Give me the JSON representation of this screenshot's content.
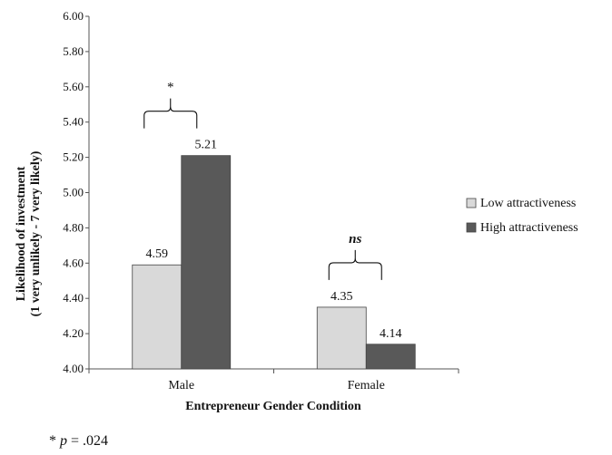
{
  "chart_data": {
    "type": "bar",
    "title": "",
    "xlabel": "Entrepreneur Gender Condition",
    "ylabel": "Likelihood of investment",
    "ylabel_sub": "(1 very unlikely - 7 very likely)",
    "ylim": [
      4.0,
      6.0
    ],
    "yticks": [
      "4.00",
      "4.20",
      "4.40",
      "4.60",
      "4.80",
      "5.00",
      "5.20",
      "5.40",
      "5.60",
      "5.80",
      "6.00"
    ],
    "categories": [
      "Male",
      "Female"
    ],
    "series": [
      {
        "name": "Low attractiveness",
        "values": [
          4.59,
          4.35
        ],
        "labels": [
          "4.59",
          "4.35"
        ],
        "color": "#d9d9d9"
      },
      {
        "name": "High attractiveness",
        "values": [
          5.21,
          4.14
        ],
        "labels": [
          "5.21",
          "4.14"
        ],
        "color": "#595959"
      }
    ],
    "annotations": [
      {
        "category": "Male",
        "text": "*",
        "italic": false
      },
      {
        "category": "Female",
        "text": "ns",
        "italic": true
      }
    ],
    "legend_position": "right",
    "grid": false
  },
  "footnote": {
    "star": "*",
    "p": "p",
    "rest": "= .024"
  }
}
